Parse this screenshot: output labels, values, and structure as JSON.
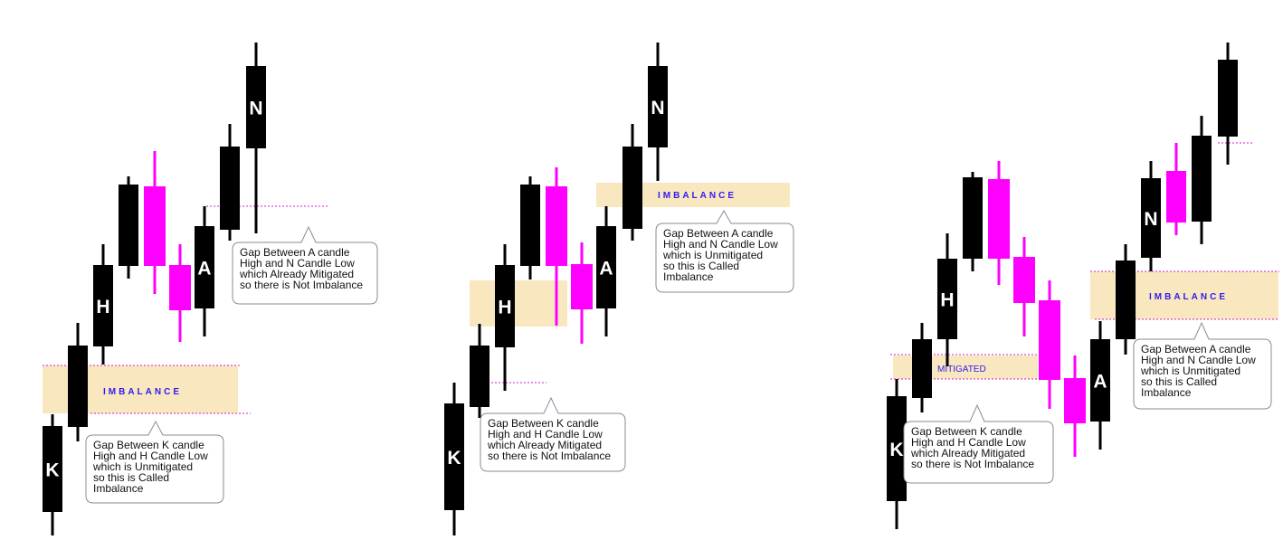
{
  "colors": {
    "bear": "#000000",
    "bull": "#ff00ff",
    "zone": "#f9e7c0",
    "dotted": "#cc22cc",
    "zone_text": "#2e1cf0",
    "callout_border": "#8a8a9a"
  },
  "imbalance_text": "IMBALANCE",
  "mitigated_text": "MITIGATED",
  "panels": [
    {
      "candles": [
        {
          "color": "bear",
          "label": "K"
        },
        {
          "color": "bear",
          "label": ""
        },
        {
          "color": "bear",
          "label": "H"
        },
        {
          "color": "bear",
          "label": ""
        },
        {
          "color": "bull",
          "label": ""
        },
        {
          "color": "bull",
          "label": ""
        },
        {
          "color": "bear",
          "label": "A"
        },
        {
          "color": "bear",
          "label": ""
        },
        {
          "color": "bear",
          "label": "N"
        }
      ],
      "callouts": [
        {
          "lines": [
            "Gap Between K candle",
            "High and H Candle Low",
            "which is  Unmitigated",
            "so this is Called",
            "Imbalance"
          ]
        },
        {
          "lines": [
            "Gap Between A candle",
            "High and N Candle Low",
            "which Already Mitigated",
            "so there is Not Imbalance"
          ]
        }
      ]
    },
    {
      "candles": [
        {
          "color": "bear",
          "label": "K"
        },
        {
          "color": "bear",
          "label": ""
        },
        {
          "color": "bear",
          "label": "H"
        },
        {
          "color": "bear",
          "label": ""
        },
        {
          "color": "bull",
          "label": ""
        },
        {
          "color": "bull",
          "label": ""
        },
        {
          "color": "bear",
          "label": "A"
        },
        {
          "color": "bear",
          "label": ""
        },
        {
          "color": "bear",
          "label": "N"
        }
      ],
      "callouts": [
        {
          "lines": [
            "Gap Between K candle",
            "High and H Candle Low",
            "which Already Mitigated",
            "so there is Not Imbalance"
          ]
        },
        {
          "lines": [
            "Gap Between A candle",
            "High and N Candle Low",
            "which is  Unmitigated",
            "so this is Called",
            "Imbalance"
          ]
        }
      ]
    },
    {
      "candles": [
        {
          "color": "bear",
          "label": "K"
        },
        {
          "color": "bear",
          "label": ""
        },
        {
          "color": "bear",
          "label": "H"
        },
        {
          "color": "bear",
          "label": ""
        },
        {
          "color": "bull",
          "label": ""
        },
        {
          "color": "bull",
          "label": ""
        },
        {
          "color": "bull",
          "label": ""
        },
        {
          "color": "bull",
          "label": ""
        },
        {
          "color": "bear",
          "label": "A"
        },
        {
          "color": "bear",
          "label": ""
        },
        {
          "color": "bear",
          "label": "N"
        },
        {
          "color": "bull",
          "label": ""
        },
        {
          "color": "bear",
          "label": ""
        },
        {
          "color": "bear",
          "label": ""
        }
      ],
      "callouts": [
        {
          "lines": [
            "Gap Between K candle",
            "High and H Candle Low",
            "which Already Mitigated",
            "so there is Not Imbalance"
          ]
        },
        {
          "lines": [
            "Gap Between A candle",
            "High and N Candle Low",
            "which is  Unmitigated",
            "so this is Called",
            "Imbalance"
          ]
        }
      ]
    }
  ]
}
